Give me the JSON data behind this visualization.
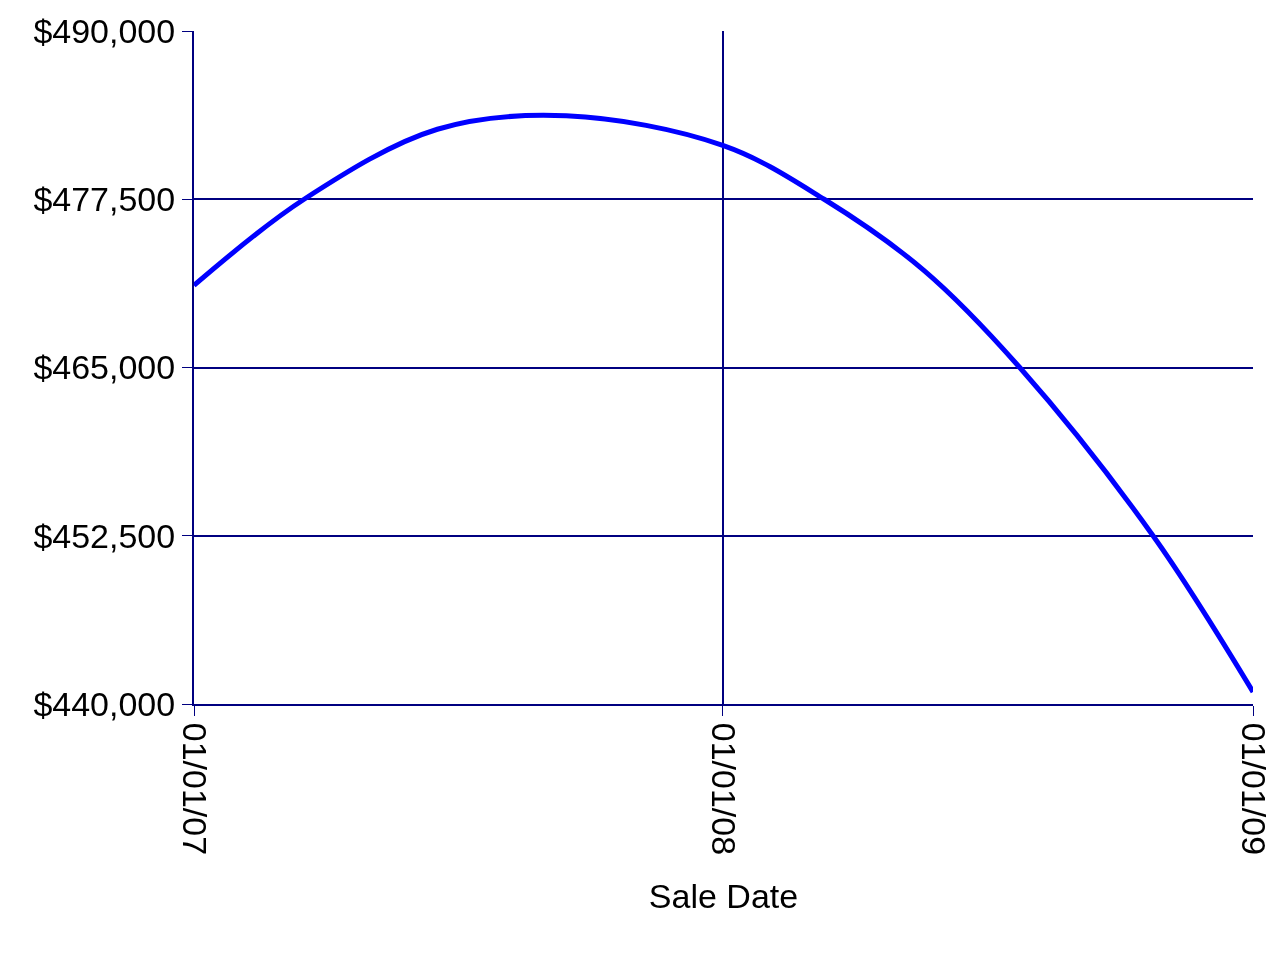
{
  "chart_data": {
    "type": "line",
    "xlabel": "Sale Date",
    "x": [
      "2007-01-01",
      "2007-03-18",
      "2007-06-18",
      "2007-09-15",
      "2008-01-01",
      "2008-03-11",
      "2008-05-19",
      "2008-07-24",
      "2008-10-24",
      "2009-01-01"
    ],
    "series": [
      {
        "color": "#0000ff",
        "values": [
          471100,
          477500,
          482700,
          483700,
          481500,
          477500,
          472200,
          465000,
          452500,
          440900
        ]
      }
    ],
    "xlim": [
      "2007-01-01",
      "2009-01-01"
    ],
    "xticks": [
      {
        "value": "2007-01-01",
        "label": "01/01/07"
      },
      {
        "value": "2008-01-01",
        "label": "01/01/08"
      },
      {
        "value": "2009-01-01",
        "label": "01/01/09"
      }
    ],
    "ylim": [
      440000,
      490000
    ],
    "yticks": [
      {
        "value": 440000,
        "label": "$440,000"
      },
      {
        "value": 452500,
        "label": "$452,500"
      },
      {
        "value": 465000,
        "label": "$465,000"
      },
      {
        "value": 477500,
        "label": "$477,500"
      },
      {
        "value": 490000,
        "label": "$490,000"
      }
    ],
    "grid": true,
    "marker": "none",
    "line_style": "solid"
  }
}
